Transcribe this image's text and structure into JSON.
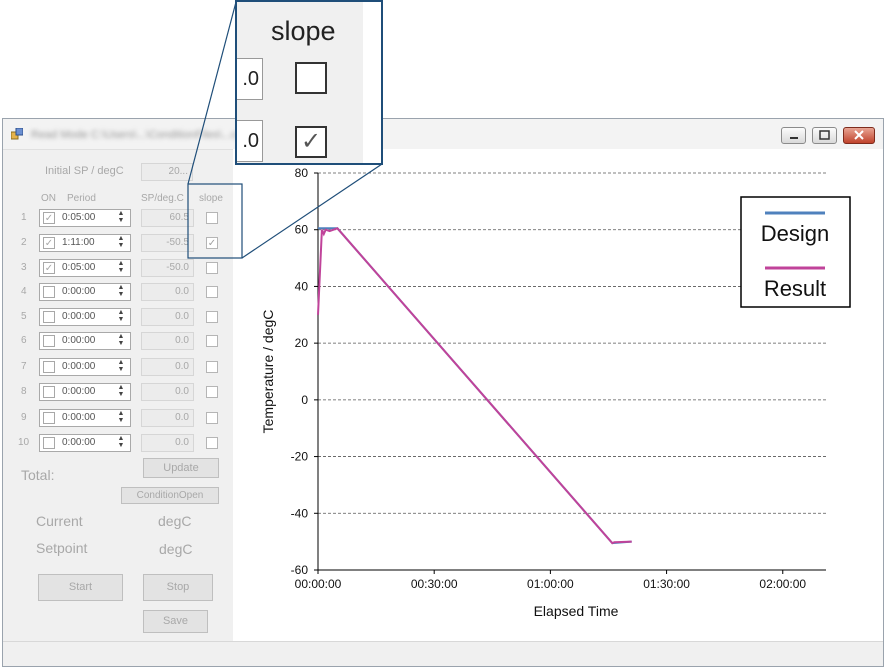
{
  "window": {
    "title": "Read Mode C:\\Users\\...\\ConditionFiles\\...csv"
  },
  "left": {
    "initial_sp_label": "Initial SP / degC",
    "initial_sp_value": "20...",
    "headers": {
      "on": "ON",
      "period": "Period",
      "sp": "SP/deg.C",
      "slope": "slope"
    },
    "rows": [
      {
        "num": "1",
        "period": "0:05:00",
        "sp": "60.5",
        "on": true,
        "slope": false
      },
      {
        "num": "2",
        "period": "1:11:00",
        "sp": "-50.5",
        "on": true,
        "slope": true
      },
      {
        "num": "3",
        "period": "0:05:00",
        "sp": "-50.0",
        "on": true,
        "slope": false
      },
      {
        "num": "4",
        "period": "0:00:00",
        "sp": "0.0",
        "on": false,
        "slope": false
      },
      {
        "num": "5",
        "period": "0:00:00",
        "sp": "0.0",
        "on": false,
        "slope": false
      },
      {
        "num": "6",
        "period": "0:00:00",
        "sp": "0.0",
        "on": false,
        "slope": false
      },
      {
        "num": "7",
        "period": "0:00:00",
        "sp": "0.0",
        "on": false,
        "slope": false
      },
      {
        "num": "8",
        "period": "0:00:00",
        "sp": "0.0",
        "on": false,
        "slope": false
      },
      {
        "num": "9",
        "period": "0:00:00",
        "sp": "0.0",
        "on": false,
        "slope": false
      },
      {
        "num": "10",
        "period": "0:00:00",
        "sp": "0.0",
        "on": false,
        "slope": false
      }
    ],
    "total_label": "Total:",
    "update_button": "Update",
    "condition_open_button": "ConditionOpen",
    "current_label": "Current",
    "current_unit": "degC",
    "setpoint_label": "Setpoint",
    "setpoint_unit": "degC",
    "start_button": "Start",
    "stop_button": "Stop",
    "save_button": "Save"
  },
  "zoom": {
    "slope_label": "slope",
    "box1_value": ".0",
    "box2_value": ".0",
    "unchecked": "",
    "checked": "✓"
  },
  "colors": {
    "design": "#4f81bd",
    "result": "#c0439a",
    "zoom_border": "#1f4e79"
  },
  "chart_data": {
    "type": "line",
    "title": "",
    "xlabel": "Elapsed Time",
    "ylabel": "Temperature / degC",
    "x_ticks": [
      "00:00:00",
      "00:30:00",
      "01:00:00",
      "01:30:00",
      "02:00:00"
    ],
    "y_ticks": [
      "80",
      "60",
      "40",
      "20",
      "0",
      "-20",
      "-40",
      "-60"
    ],
    "xlim_minutes": [
      0,
      126
    ],
    "ylim": [
      -60,
      80
    ],
    "grid": "horizontal dashed",
    "legend_position": "top-right",
    "series": [
      {
        "name": "Design",
        "x_minutes": [
          0,
          5,
          76,
          81
        ],
        "y": [
          60.5,
          60.5,
          -50.5,
          -50.0
        ]
      },
      {
        "name": "Result",
        "x_minutes": [
          0,
          1,
          1.5,
          2,
          3,
          5,
          76,
          76.5,
          81
        ],
        "y": [
          30,
          60,
          58.5,
          60,
          59.5,
          60.5,
          -50.5,
          -50.2,
          -50.0
        ]
      }
    ]
  }
}
